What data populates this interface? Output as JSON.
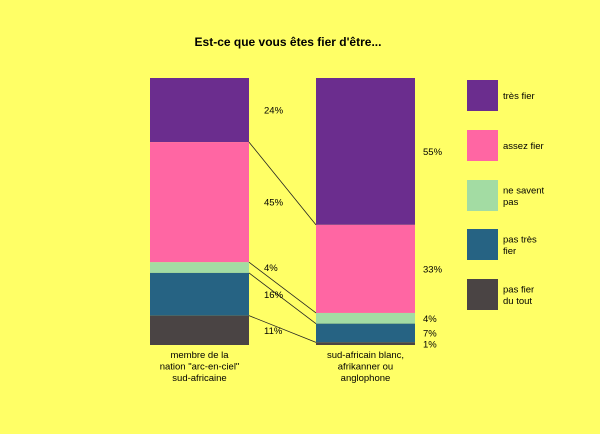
{
  "chart_data": {
    "type": "bar",
    "stacked": true,
    "normalized": true,
    "title": "Est-ce que vous êtes fier d'être...",
    "categories": [
      [
        "membre de la",
        "nation \"arc-en-ciel\"",
        "sud-africaine"
      ],
      [
        "sud-africain blanc,",
        "afrikanner ou",
        "anglophone"
      ]
    ],
    "series": [
      {
        "name": [
          "très fier"
        ],
        "color": "#6b2d8e",
        "values": [
          24,
          55
        ]
      },
      {
        "name": [
          "assez fier"
        ],
        "color": "#ff66a3",
        "values": [
          45,
          33
        ]
      },
      {
        "name": [
          "ne savent",
          "pas"
        ],
        "color": "#a3dca3",
        "values": [
          4,
          4
        ]
      },
      {
        "name": [
          "pas très",
          "fier"
        ],
        "color": "#266383",
        "values": [
          16,
          7
        ]
      },
      {
        "name": [
          "pas fier",
          "du tout"
        ],
        "color": "#4a4444",
        "values": [
          11,
          1
        ]
      }
    ],
    "value_labels": [
      [
        "24%",
        "45%",
        "4%",
        "16%",
        "11%"
      ],
      [
        "55%",
        "33%",
        "4%",
        "7%",
        "1%"
      ]
    ],
    "connector_lines": true,
    "legend_position": "right",
    "ylim": [
      0,
      100
    ],
    "grid": false
  }
}
